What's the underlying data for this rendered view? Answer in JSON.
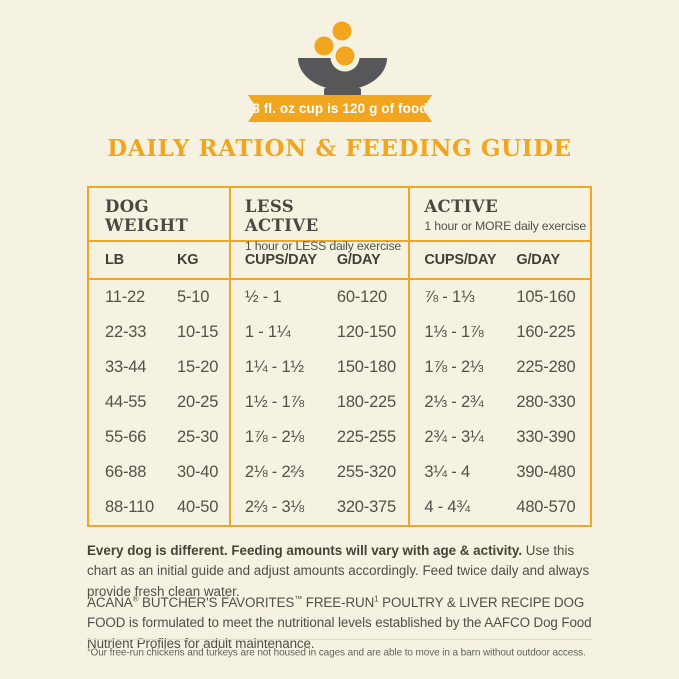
{
  "colors": {
    "background": "#F5F2E1",
    "accent_orange": "#F2A51F",
    "bowl_gray": "#57575A",
    "text": "#514F47"
  },
  "banner": {
    "text": "8 fl. oz cup is 120 g of food"
  },
  "title": "DAILY RATION & FEEDING GUIDE",
  "table": {
    "groups": [
      {
        "title": "DOG WEIGHT",
        "subtitle": "",
        "columns": [
          "LB",
          "KG"
        ]
      },
      {
        "title": "LESS ACTIVE",
        "subtitle": "1 hour or LESS daily exercise",
        "columns": [
          "CUPS/DAY",
          "G/DAY"
        ]
      },
      {
        "title": "ACTIVE",
        "subtitle": "1 hour or MORE daily exercise",
        "columns": [
          "CUPS/DAY",
          "G/DAY"
        ]
      }
    ],
    "rows": [
      [
        "11-22",
        "5-10",
        "½ - 1",
        "60-120",
        "⅞ - 1⅓",
        "105-160"
      ],
      [
        "22-33",
        "10-15",
        "1 - 1¼",
        "120-150",
        "1⅓ - 1⅞",
        "160-225"
      ],
      [
        "33-44",
        "15-20",
        "1¼ - 1½",
        "150-180",
        "1⅞ - 2⅓",
        "225-280"
      ],
      [
        "44-55",
        "20-25",
        "1½ - 1⅞",
        "180-225",
        "2⅓ - 2¾",
        "280-330"
      ],
      [
        "55-66",
        "25-30",
        "1⅞ - 2⅛",
        "225-255",
        "2¾ - 3¼",
        "330-390"
      ],
      [
        "66-88",
        "30-40",
        "2⅛ - 2⅔",
        "255-320",
        "3¼ - 4",
        "390-480"
      ],
      [
        "88-110",
        "40-50",
        "2⅔ - 3⅛",
        "320-375",
        "4 - 4¾",
        "480-570"
      ]
    ]
  },
  "notes": {
    "note1_bold": "Every dog is different. Feeding amounts will vary with age & activity.",
    "note1_rest": " Use this chart as an initial guide and adjust amounts accordingly. Feed twice daily and always provide fresh clean water.",
    "note2": {
      "brand": "ACANA",
      "reg": "®",
      "range": " BUTCHER'S FAVORITES",
      "tm": "™",
      "freerun": " FREE-RUN",
      "sup": "1",
      "product": " POULTRY & LIVER RECIPE DOG FOOD",
      "rest": " is formulated to meet the nutritional levels established by the AAFCO Dog Food Nutrient Profiles for adult maintenance."
    },
    "footnote_sup": "1",
    "footnote": "Our free-run chickens and turkeys are not housed in cages and are able to move in a barn without outdoor access."
  }
}
